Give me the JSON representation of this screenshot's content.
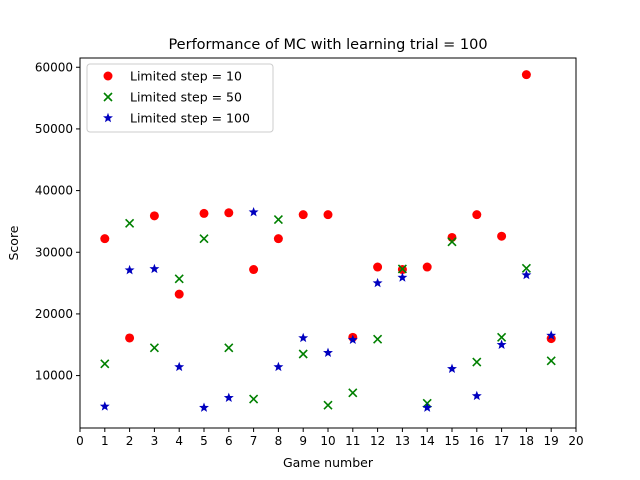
{
  "chart_data": {
    "type": "scatter",
    "title": "Performance of MC with learning trial = 100",
    "xlabel": "Game number",
    "ylabel": "Score",
    "xlim": [
      0,
      20
    ],
    "ylim": [
      1500,
      61500
    ],
    "xticks": [
      "0",
      "1",
      "2",
      "3",
      "4",
      "5",
      "6",
      "7",
      "8",
      "9",
      "10",
      "11",
      "12",
      "13",
      "14",
      "15",
      "16",
      "17",
      "18",
      "19",
      "20"
    ],
    "yticks": [
      {
        "value": 10000,
        "label": "10000"
      },
      {
        "value": 20000,
        "label": "20000"
      },
      {
        "value": 30000,
        "label": "30000"
      },
      {
        "value": 40000,
        "label": "40000"
      },
      {
        "value": 50000,
        "label": "50000"
      },
      {
        "value": 60000,
        "label": "60000"
      }
    ],
    "grid": false,
    "legend_position": "top-left",
    "series": [
      {
        "name": "Limited step = 10",
        "marker": "circle",
        "color": "#ff0000",
        "x": [
          1,
          2,
          3,
          4,
          5,
          6,
          7,
          8,
          9,
          10,
          11,
          12,
          13,
          14,
          15,
          16,
          17,
          18,
          19
        ],
        "y": [
          32200,
          16100,
          35900,
          23200,
          36300,
          36400,
          27200,
          32200,
          36100,
          36100,
          16200,
          27600,
          27200,
          27600,
          32400,
          36100,
          32600,
          58800,
          16000
        ]
      },
      {
        "name": "Limited step = 50",
        "marker": "x",
        "color": "#008000",
        "x": [
          1,
          2,
          3,
          4,
          5,
          6,
          7,
          8,
          9,
          10,
          11,
          12,
          13,
          14,
          15,
          16,
          17,
          18,
          19
        ],
        "y": [
          11900,
          34700,
          14500,
          25700,
          32200,
          14500,
          6200,
          35300,
          13500,
          5200,
          7200,
          15900,
          27300,
          5500,
          31700,
          12200,
          16200,
          27400,
          12400
        ]
      },
      {
        "name": "Limited step = 100",
        "marker": "star",
        "color": "#0000bf",
        "x": [
          1,
          2,
          3,
          4,
          5,
          6,
          7,
          8,
          9,
          10,
          11,
          12,
          13,
          14,
          15,
          16,
          17,
          18,
          19
        ],
        "y": [
          5000,
          27100,
          27300,
          11400,
          4800,
          6400,
          36500,
          11400,
          16100,
          13700,
          15800,
          25000,
          25900,
          4800,
          11100,
          6700,
          15000,
          26300,
          16500
        ]
      }
    ]
  }
}
